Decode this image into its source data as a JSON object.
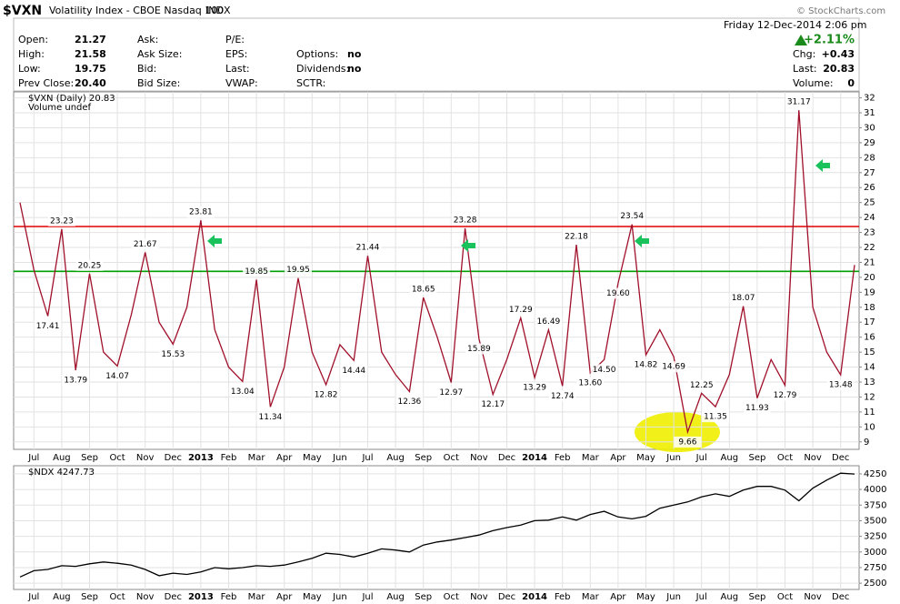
{
  "header": {
    "symbol": "$VXN",
    "name": "Volatility Index - CBOE Nasdaq 100",
    "exchange": "INDX",
    "date": "Friday  12-Dec-2014  2:06 pm",
    "copyright": "© StockCharts.com",
    "change_pct": "+2.11%"
  },
  "quote": {
    "col1": [
      {
        "label": "Open:",
        "value": "21.27"
      },
      {
        "label": "High:",
        "value": "21.58"
      },
      {
        "label": "Low:",
        "value": "19.75"
      },
      {
        "label": "Prev Close:",
        "value": "20.40"
      }
    ],
    "col2": [
      "Ask:",
      "Ask Size:",
      "Bid:",
      "Bid Size:"
    ],
    "col3": [
      "P/E:",
      "EPS:",
      "Last:",
      "VWAP:"
    ],
    "col4": [
      {
        "label": "Options:",
        "value": "no"
      },
      {
        "label": "Dividends:",
        "value": "no"
      },
      {
        "label": "SCTR:"
      }
    ],
    "right": [
      {
        "label": "Chg:",
        "value": "+0.43"
      },
      {
        "label": "Last:",
        "value": "20.83"
      },
      {
        "label": "Volume:",
        "value": "0"
      }
    ]
  },
  "chart_data": [
    {
      "type": "line",
      "note": "Volume undef",
      "categories": [
        null,
        "Jul",
        null,
        "Aug",
        null,
        "Sep",
        null,
        "Oct",
        null,
        "Nov",
        null,
        "Dec",
        null,
        "2013",
        null,
        "Feb",
        null,
        "Mar",
        null,
        "Apr",
        null,
        "May",
        null,
        "Jun",
        null,
        "Jul",
        null,
        "Aug",
        null,
        "Sep",
        null,
        "Oct",
        null,
        "Nov",
        null,
        "Dec",
        null,
        "2014",
        null,
        "Feb",
        null,
        "Mar",
        null,
        "Apr",
        null,
        "May",
        null,
        "Jun",
        null,
        "Jul",
        null,
        "Aug",
        null,
        "Sep",
        null,
        "Oct",
        null,
        "Nov",
        null,
        "Dec",
        null
      ],
      "series": [
        {
          "name": "$VXN (Daily) 20.83",
          "color": "#a0102a",
          "values": [
            25.0,
            20.5,
            17.41,
            23.23,
            13.79,
            20.25,
            15.0,
            14.07,
            17.5,
            21.67,
            17.0,
            15.53,
            18.0,
            23.81,
            16.5,
            14.0,
            13.04,
            19.85,
            11.34,
            14.0,
            19.95,
            15.0,
            12.82,
            15.5,
            14.44,
            21.44,
            15.0,
            13.5,
            12.36,
            18.65,
            16.0,
            12.97,
            23.28,
            15.89,
            12.17,
            14.5,
            17.29,
            13.29,
            16.49,
            12.74,
            22.18,
            13.6,
            14.5,
            19.6,
            23.54,
            14.82,
            16.5,
            14.69,
            9.66,
            12.25,
            11.35,
            13.5,
            18.07,
            11.93,
            14.5,
            12.79,
            31.17,
            18.0,
            15.0,
            13.48,
            20.83
          ],
          "value_labels": [
            null,
            null,
            "17.41",
            "23.23",
            "13.79",
            "20.25",
            null,
            "14.07",
            null,
            "21.67",
            null,
            "15.53",
            null,
            "23.81",
            null,
            null,
            "13.04",
            "19.85",
            "11.34",
            null,
            "19.95",
            null,
            "12.82",
            null,
            "14.44",
            "21.44",
            null,
            null,
            "12.36",
            "18.65",
            null,
            "12.97",
            "23.28",
            "15.89",
            "12.17",
            null,
            "17.29",
            "13.29",
            "16.49",
            "12.74",
            "22.18",
            "13.60",
            "14.50",
            "19.60",
            "23.54",
            "14.82",
            null,
            "14.69",
            "9.66",
            "12.25",
            "11.35",
            null,
            "18.07",
            "11.93",
            null,
            "12.79",
            "31.17",
            null,
            null,
            "13.48",
            null
          ]
        }
      ],
      "hlines": [
        {
          "value": 23.4,
          "color": "#e00000"
        },
        {
          "value": 20.4,
          "color": "#00a000"
        }
      ],
      "ylim": [
        8.5,
        32.4
      ],
      "yticks": [
        9,
        10,
        11,
        12,
        13,
        14,
        15,
        16,
        17,
        18,
        19,
        20,
        21,
        22,
        23,
        24,
        25,
        26,
        27,
        28,
        29,
        30,
        31,
        32
      ],
      "grid": true
    },
    {
      "type": "line",
      "categories": [
        null,
        "Jul",
        null,
        "Aug",
        null,
        "Sep",
        null,
        "Oct",
        null,
        "Nov",
        null,
        "Dec",
        null,
        "2013",
        null,
        "Feb",
        null,
        "Mar",
        null,
        "Apr",
        null,
        "May",
        null,
        "Jun",
        null,
        "Jul",
        null,
        "Aug",
        null,
        "Sep",
        null,
        "Oct",
        null,
        "Nov",
        null,
        "Dec",
        null,
        "2014",
        null,
        "Feb",
        null,
        "Mar",
        null,
        "Apr",
        null,
        "May",
        null,
        "Jun",
        null,
        "Jul",
        null,
        "Aug",
        null,
        "Sep",
        null,
        "Oct",
        null,
        "Nov",
        null,
        "Dec",
        null
      ],
      "series": [
        {
          "name": "$NDX 4247.73",
          "color": "#000000",
          "values": [
            2600,
            2700,
            2720,
            2780,
            2770,
            2810,
            2840,
            2820,
            2790,
            2720,
            2620,
            2660,
            2640,
            2680,
            2750,
            2730,
            2750,
            2780,
            2770,
            2790,
            2840,
            2900,
            2980,
            2960,
            2920,
            2980,
            3050,
            3030,
            3000,
            3110,
            3160,
            3190,
            3230,
            3270,
            3340,
            3390,
            3430,
            3500,
            3510,
            3560,
            3510,
            3600,
            3650,
            3560,
            3530,
            3570,
            3700,
            3750,
            3800,
            3880,
            3930,
            3890,
            3990,
            4050,
            4050,
            3990,
            3820,
            4020,
            4150,
            4260,
            4247.73
          ]
        }
      ],
      "ylim": [
        2400,
        4380
      ],
      "yticks": [
        2500,
        2750,
        3000,
        3250,
        3500,
        3750,
        4000,
        4250
      ],
      "grid": true
    }
  ]
}
